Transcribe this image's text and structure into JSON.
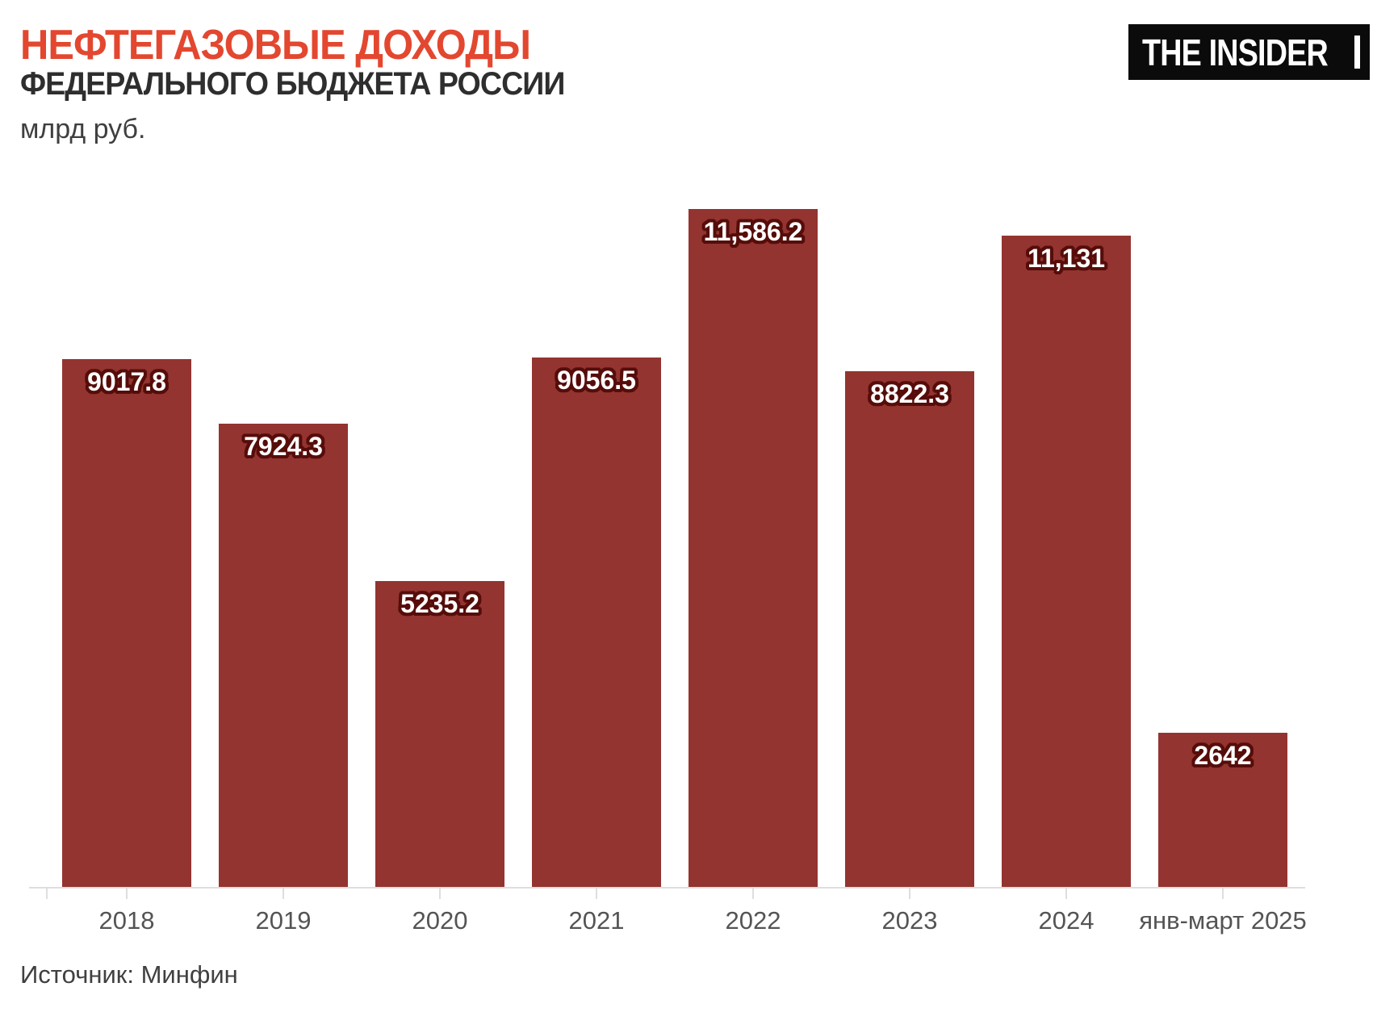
{
  "header": {
    "title_line1": "НЕФТЕГАЗОВЫЕ ДОХОДЫ",
    "title_line2": "ФЕДЕРАЛЬНОГО БЮДЖЕТА РОССИИ",
    "unit_label": "млрд руб."
  },
  "logo": {
    "text": "THE INSIDER"
  },
  "footer": {
    "source_label": "Источник: Минфин"
  },
  "colors": {
    "bar": "#933430",
    "bar_value_outline": "#560d0a",
    "title_accent": "#e3472f",
    "title_dark": "#2e2e2e",
    "axis": "#dedede",
    "tick_label": "#545454",
    "logo_bg": "#0b0b0b"
  },
  "chart_data": {
    "type": "bar",
    "title": "НЕФТЕГАЗОВЫЕ ДОХОДЫ ФЕДЕРАЛЬНОГО БЮДЖЕТА РОССИИ",
    "ylabel": "млрд руб.",
    "categories": [
      "2018",
      "2019",
      "2020",
      "2021",
      "2022",
      "2023",
      "2024",
      "янв-март 2025"
    ],
    "values": [
      9017.8,
      7924.3,
      5235.2,
      9056.5,
      11586.2,
      8822.3,
      11131,
      2642
    ],
    "value_labels": [
      "9017.8",
      "7924.3",
      "5235.2",
      "9056.5",
      "11,586.2",
      "8822.3",
      "11,131",
      "2642"
    ],
    "bar_color": "#933430",
    "ylim": [
      0,
      11586.2
    ],
    "grid": false,
    "legend_position": null,
    "source": "Источник: Минфин"
  }
}
